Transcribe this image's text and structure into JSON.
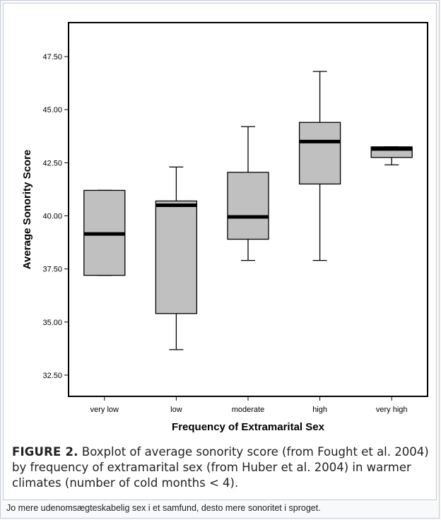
{
  "chart_data": {
    "type": "boxplot",
    "xlabel": "Frequency of Extramarital Sex",
    "ylabel": "Average Sonority Score",
    "ylim": [
      31.5,
      49.1
    ],
    "yticks": [
      "32.50",
      "35.00",
      "37.50",
      "40.00",
      "42.50",
      "45.00",
      "47.50"
    ],
    "ytick_values": [
      32.5,
      35.0,
      37.5,
      40.0,
      42.5,
      45.0,
      47.5
    ],
    "categories": [
      "very low",
      "low",
      "moderate",
      "high",
      "very high"
    ],
    "boxes": [
      {
        "category": "very low",
        "whisker_low": 37.2,
        "q1": 37.2,
        "median": 39.15,
        "q3": 41.2,
        "whisker_high": 41.2
      },
      {
        "category": "low",
        "whisker_low": 33.7,
        "q1": 35.4,
        "median": 40.5,
        "q3": 40.7,
        "whisker_high": 42.3
      },
      {
        "category": "moderate",
        "whisker_low": 37.9,
        "q1": 38.9,
        "median": 39.95,
        "q3": 42.05,
        "whisker_high": 44.2
      },
      {
        "category": "high",
        "whisker_low": 37.9,
        "q1": 41.5,
        "median": 43.5,
        "q3": 44.4,
        "whisker_high": 46.8
      },
      {
        "category": "very high",
        "whisker_low": 42.4,
        "q1": 42.75,
        "median": 43.15,
        "q3": 43.25,
        "whisker_high": 43.25
      }
    ],
    "colors": {
      "box_fill": "#c0c0c0",
      "median": "#000000",
      "frame": "#000000"
    },
    "grid": false
  },
  "caption": {
    "label": "FIGURE 2.",
    "text": "Boxplot of average sonority score (from Fought et al. 2004) by frequency of extramarital sex (from Huber et al. 2004) in warmer climates (number of cold months < 4)."
  },
  "thumbcaption": "Jo mere udenomsægteskabelig sex i et samfund, desto mere sonoritet i sproget."
}
